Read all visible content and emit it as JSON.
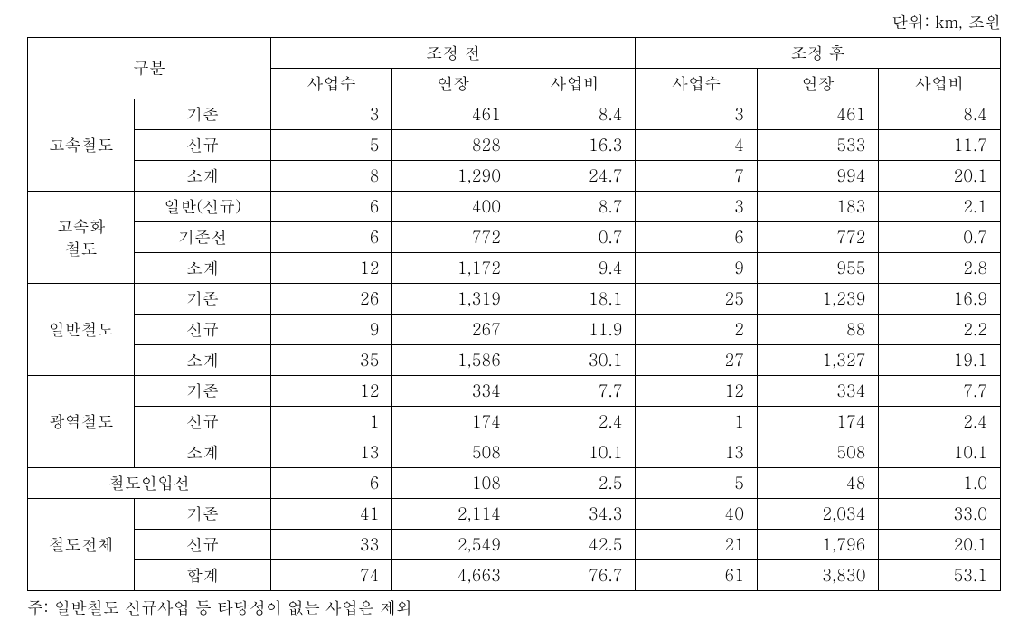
{
  "unit_label": "단위: km, 조원",
  "note": "주: 일반철도 신규사업 등 타당성이 없는 사업은 제외",
  "headers": {
    "category": "구분",
    "before": "조정 전",
    "after": "조정 후",
    "count": "사업수",
    "length": "연장",
    "cost": "사업비"
  },
  "groups": [
    {
      "label": "고속철도",
      "rows": [
        {
          "sub": "기존",
          "before": {
            "count": "3",
            "length": "461",
            "cost": "8.4"
          },
          "after": {
            "count": "3",
            "length": "461",
            "cost": "8.4"
          }
        },
        {
          "sub": "신규",
          "before": {
            "count": "5",
            "length": "828",
            "cost": "16.3"
          },
          "after": {
            "count": "4",
            "length": "533",
            "cost": "11.7"
          }
        },
        {
          "sub": "소계",
          "before": {
            "count": "8",
            "length": "1,290",
            "cost": "24.7"
          },
          "after": {
            "count": "7",
            "length": "994",
            "cost": "20.1"
          }
        }
      ]
    },
    {
      "label": "고속화\n철도",
      "rows": [
        {
          "sub": "일반(신규)",
          "before": {
            "count": "6",
            "length": "400",
            "cost": "8.7"
          },
          "after": {
            "count": "3",
            "length": "183",
            "cost": "2.1"
          }
        },
        {
          "sub": "기존선",
          "before": {
            "count": "6",
            "length": "772",
            "cost": "0.7"
          },
          "after": {
            "count": "6",
            "length": "772",
            "cost": "0.7"
          }
        },
        {
          "sub": "소계",
          "before": {
            "count": "12",
            "length": "1,172",
            "cost": "9.4"
          },
          "after": {
            "count": "9",
            "length": "955",
            "cost": "2.8"
          }
        }
      ]
    },
    {
      "label": "일반철도",
      "rows": [
        {
          "sub": "기존",
          "before": {
            "count": "26",
            "length": "1,319",
            "cost": "18.1"
          },
          "after": {
            "count": "25",
            "length": "1,239",
            "cost": "16.9"
          }
        },
        {
          "sub": "신규",
          "before": {
            "count": "9",
            "length": "267",
            "cost": "11.9"
          },
          "after": {
            "count": "2",
            "length": "88",
            "cost": "2.2"
          }
        },
        {
          "sub": "소계",
          "before": {
            "count": "35",
            "length": "1,586",
            "cost": "30.1"
          },
          "after": {
            "count": "27",
            "length": "1,327",
            "cost": "19.1"
          }
        }
      ]
    },
    {
      "label": "광역철도",
      "rows": [
        {
          "sub": "기존",
          "before": {
            "count": "12",
            "length": "334",
            "cost": "7.7"
          },
          "after": {
            "count": "12",
            "length": "334",
            "cost": "7.7"
          }
        },
        {
          "sub": "신규",
          "before": {
            "count": "1",
            "length": "174",
            "cost": "2.4"
          },
          "after": {
            "count": "1",
            "length": "174",
            "cost": "2.4"
          }
        },
        {
          "sub": "소계",
          "before": {
            "count": "13",
            "length": "508",
            "cost": "10.1"
          },
          "after": {
            "count": "13",
            "length": "508",
            "cost": "10.1"
          }
        }
      ]
    }
  ],
  "single_row": {
    "label": "철도인입선",
    "before": {
      "count": "6",
      "length": "108",
      "cost": "2.5"
    },
    "after": {
      "count": "5",
      "length": "48",
      "cost": "1.0"
    }
  },
  "total_group": {
    "label": "철도전체",
    "rows": [
      {
        "sub": "기존",
        "before": {
          "count": "41",
          "length": "2,114",
          "cost": "34.3"
        },
        "after": {
          "count": "40",
          "length": "2,034",
          "cost": "33.0"
        }
      },
      {
        "sub": "신규",
        "before": {
          "count": "33",
          "length": "2,549",
          "cost": "42.5"
        },
        "after": {
          "count": "21",
          "length": "1,796",
          "cost": "20.1"
        }
      },
      {
        "sub": "합계",
        "before": {
          "count": "74",
          "length": "4,663",
          "cost": "76.7"
        },
        "after": {
          "count": "61",
          "length": "3,830",
          "cost": "53.1"
        }
      }
    ]
  }
}
